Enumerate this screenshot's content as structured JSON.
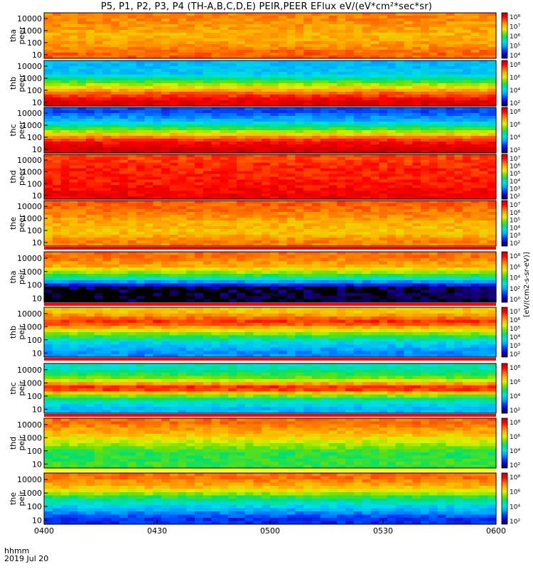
{
  "title": "P5, P1, P2, P3, P4 (TH-A,B,C,D,E) PEIR,PEER EFlux eV/(eV*cm²*sec*sr)",
  "footer": {
    "time_label": "hhmm",
    "date_label": "2019 Jul 20"
  },
  "colorbar_units": "[eV/(cm2-s-sr-eV)]",
  "colors": {
    "spectrum": [
      "#10004a",
      "#1400c8",
      "#0046ff",
      "#00aaff",
      "#00e0e0",
      "#00e070",
      "#70e000",
      "#e0f000",
      "#ffb000",
      "#ff6000",
      "#ff0000",
      "#c00000"
    ],
    "separator": "#ff0000",
    "fill_low": "#000000"
  },
  "chart_data": [
    {
      "type": "heatmap",
      "probe": "tha",
      "species": "peer",
      "ylabels": [
        "10000",
        "1000",
        "100",
        "10"
      ],
      "y_range": [
        5,
        30000
      ],
      "y_scale": "log",
      "cb_ticks": [
        "10⁸",
        "10⁷",
        "10⁶",
        "10⁵",
        "10⁴"
      ],
      "profile": [
        [
          0.9,
          0.78
        ],
        [
          0.7,
          0.75
        ],
        [
          0.5,
          0.72
        ],
        [
          0.3,
          0.75
        ],
        [
          0.1,
          0.82
        ]
      ]
    },
    {
      "type": "heatmap",
      "probe": "thb",
      "species": "peer",
      "ylabels": [
        "10000",
        "1000",
        "100",
        "10"
      ],
      "y_range": [
        5,
        30000
      ],
      "y_scale": "log",
      "cb_ticks": [
        "10⁸",
        "10⁶",
        "10⁴",
        "10²"
      ],
      "profile": [
        [
          0.9,
          0.3
        ],
        [
          0.7,
          0.32
        ],
        [
          0.5,
          0.55
        ],
        [
          0.3,
          0.8
        ],
        [
          0.1,
          0.95
        ]
      ]
    },
    {
      "type": "heatmap",
      "probe": "thc",
      "species": "peer",
      "ylabels": [
        "10000",
        "1000",
        "100",
        "10"
      ],
      "y_range": [
        5,
        30000
      ],
      "y_scale": "log",
      "cb_ticks": [
        "10⁸",
        "10⁶",
        "10⁴",
        "10²"
      ],
      "profile": [
        [
          0.9,
          0.18
        ],
        [
          0.7,
          0.3
        ],
        [
          0.5,
          0.55
        ],
        [
          0.3,
          0.85
        ],
        [
          0.1,
          0.98
        ]
      ]
    },
    {
      "type": "heatmap",
      "probe": "thd",
      "species": "peer",
      "ylabels": [
        "10000",
        "1000",
        "100",
        "10"
      ],
      "y_range": [
        5,
        30000
      ],
      "y_scale": "log",
      "cb_ticks": [
        "10⁷",
        "10⁶",
        "10⁵",
        "10⁴",
        "10³",
        "10²"
      ],
      "profile": [
        [
          0.9,
          0.85
        ],
        [
          0.7,
          0.88
        ],
        [
          0.5,
          0.88
        ],
        [
          0.3,
          0.9
        ],
        [
          0.1,
          0.93
        ]
      ]
    },
    {
      "type": "heatmap",
      "probe": "the",
      "species": "peer",
      "ylabels": [
        "10000",
        "1000",
        "100",
        "10"
      ],
      "y_range": [
        5,
        30000
      ],
      "y_scale": "log",
      "cb_ticks": [
        "10⁷",
        "10⁶",
        "10⁵",
        "10⁴",
        "10³",
        "10²"
      ],
      "profile": [
        [
          0.9,
          0.82
        ],
        [
          0.7,
          0.78
        ],
        [
          0.5,
          0.72
        ],
        [
          0.3,
          0.7
        ],
        [
          0.1,
          0.78
        ]
      ]
    },
    {
      "type": "heatmap",
      "probe": "tha",
      "species": "peir",
      "ylabels": [
        "10000",
        "1000",
        "100",
        "10"
      ],
      "y_range": [
        5,
        30000
      ],
      "y_scale": "log",
      "cb_ticks": [
        "10⁸",
        "10⁶",
        "10⁴",
        "10²",
        "10⁰"
      ],
      "profile": [
        [
          0.9,
          0.8
        ],
        [
          0.7,
          0.72
        ],
        [
          0.5,
          0.45
        ],
        [
          0.3,
          0.05
        ],
        [
          0.1,
          0.0
        ]
      ]
    },
    {
      "type": "heatmap",
      "probe": "thb",
      "species": "peir",
      "ylabels": [
        "10000",
        "1000",
        "100",
        "10"
      ],
      "y_range": [
        5,
        30000
      ],
      "y_scale": "log",
      "cb_ticks": [
        "10⁷",
        "10⁶",
        "10⁵",
        "10⁴",
        "10³",
        "10²"
      ],
      "profile": [
        [
          0.9,
          0.7
        ],
        [
          0.7,
          0.88
        ],
        [
          0.5,
          0.6
        ],
        [
          0.3,
          0.35
        ],
        [
          0.1,
          0.25
        ]
      ]
    },
    {
      "type": "heatmap",
      "probe": "thc",
      "species": "peir",
      "ylabels": [
        "10000",
        "1000",
        "100",
        "10"
      ],
      "y_range": [
        5,
        30000
      ],
      "y_scale": "log",
      "cb_ticks": [
        "10⁸",
        "10⁶",
        "10⁴",
        "10²"
      ],
      "profile": [
        [
          0.9,
          0.4
        ],
        [
          0.7,
          0.55
        ],
        [
          0.5,
          0.92
        ],
        [
          0.3,
          0.45
        ],
        [
          0.1,
          0.3
        ]
      ]
    },
    {
      "type": "heatmap",
      "probe": "thd",
      "species": "peir",
      "ylabels": [
        "10000",
        "1000",
        "100",
        "10"
      ],
      "y_range": [
        5,
        30000
      ],
      "y_scale": "log",
      "cb_ticks": [
        "10⁸",
        "10⁶",
        "10⁴",
        "10²"
      ],
      "profile": [
        [
          0.9,
          0.8
        ],
        [
          0.7,
          0.72
        ],
        [
          0.5,
          0.6
        ],
        [
          0.3,
          0.48
        ],
        [
          0.1,
          0.5
        ]
      ]
    },
    {
      "type": "heatmap",
      "probe": "the",
      "species": "peir",
      "ylabels": [
        "10000",
        "1000",
        "100",
        "10"
      ],
      "y_range": [
        5,
        30000
      ],
      "y_scale": "log",
      "cb_ticks": [
        "10⁸",
        "10⁶",
        "10⁴",
        "10²"
      ],
      "profile": [
        [
          0.9,
          0.8
        ],
        [
          0.7,
          0.7
        ],
        [
          0.5,
          0.45
        ],
        [
          0.3,
          0.3
        ],
        [
          0.1,
          0.15
        ]
      ]
    }
  ],
  "x_axis": {
    "tick_labels": [
      "0400",
      "0430",
      "0500",
      "0530",
      "0600"
    ],
    "range": [
      "04:00",
      "06:00"
    ]
  }
}
